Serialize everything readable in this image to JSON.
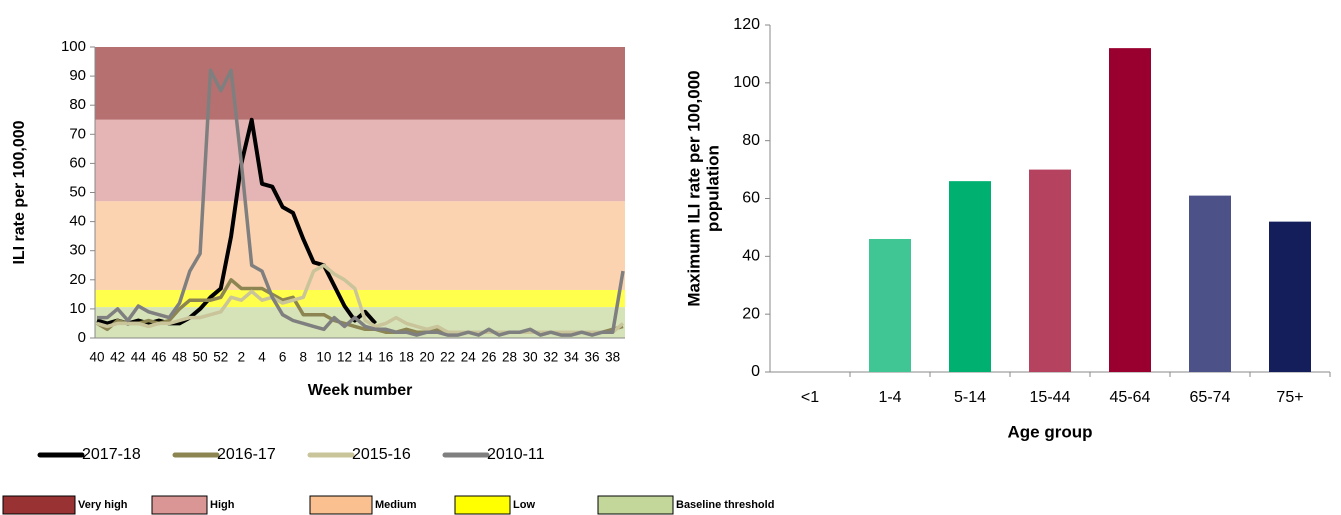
{
  "chart_data": [
    {
      "type": "line",
      "xlabel": "Week number",
      "ylabel": "ILI rate per 100,000",
      "categories": [
        "40",
        null,
        "42",
        null,
        "44",
        null,
        "46",
        null,
        "48",
        null,
        "50",
        null,
        "52",
        null,
        "2",
        null,
        "4",
        null,
        "6",
        null,
        "8",
        null,
        "10",
        null,
        "12",
        null,
        "14",
        null,
        "16",
        null,
        "18",
        null,
        "20",
        null,
        "22",
        null,
        "24",
        null,
        "26",
        null,
        "28",
        null,
        "30",
        null,
        "32",
        null,
        "34",
        null,
        "36",
        null,
        "38",
        null
      ],
      "ylim": [
        0,
        100
      ],
      "yticks": [
        0,
        10,
        20,
        30,
        40,
        50,
        60,
        70,
        80,
        90,
        100
      ],
      "bands": [
        {
          "name": "Very high",
          "color": "#993333",
          "from": 75,
          "to": 100
        },
        {
          "name": "High",
          "color": "#d99694",
          "from": 47,
          "to": 75
        },
        {
          "name": "Medium",
          "color": "#fac090",
          "from": 16.5,
          "to": 47
        },
        {
          "name": "Low",
          "color": "#ffff00",
          "from": 10.6,
          "to": 16.5
        },
        {
          "name": "Baseline threshold",
          "color": "#c4d79b",
          "from": 0,
          "to": 10.6
        }
      ],
      "series": [
        {
          "name": "2017-18",
          "color": "#000000",
          "values": [
            6,
            5,
            6,
            5,
            6,
            5,
            6,
            5,
            5,
            7,
            10,
            14,
            17,
            35,
            60,
            75,
            53,
            52,
            45,
            43,
            34,
            26,
            25,
            18,
            11,
            6,
            9,
            5,
            null,
            null,
            null,
            null,
            null,
            null,
            null,
            null,
            null,
            null,
            null,
            null,
            null,
            null,
            null,
            null,
            null,
            null,
            null,
            null,
            null,
            null,
            null,
            null
          ]
        },
        {
          "name": "2016-17",
          "color": "#8c8552",
          "values": [
            5,
            3,
            6,
            5,
            5,
            6,
            5,
            6,
            10,
            13,
            13,
            13,
            14,
            20,
            17,
            17,
            17,
            15,
            13,
            14,
            8,
            8,
            8,
            6,
            5,
            4,
            3,
            3,
            2,
            2,
            3,
            2,
            2,
            3,
            2,
            2,
            2,
            2,
            2,
            2,
            2,
            2,
            2,
            2,
            2,
            2,
            2,
            2,
            2,
            2,
            3,
            4
          ]
        },
        {
          "name": "2015-16",
          "color": "#c9c49a",
          "values": [
            5,
            4,
            5,
            5,
            5,
            4,
            5,
            5,
            6,
            7,
            7,
            8,
            9,
            14,
            13,
            16,
            13,
            14,
            12,
            13,
            14,
            23,
            25,
            22,
            20,
            17,
            6,
            4,
            5,
            7,
            5,
            4,
            3,
            4,
            2,
            2,
            2,
            2,
            2,
            2,
            2,
            2,
            2,
            2,
            2,
            2,
            2,
            2,
            2,
            2,
            2,
            5
          ]
        },
        {
          "name": "2010-11",
          "color": "#7f7f7f",
          "values": [
            7,
            7,
            10,
            6,
            11,
            9,
            8,
            7,
            12,
            23,
            29,
            92,
            85,
            92,
            60,
            25,
            23,
            14,
            8,
            6,
            5,
            4,
            3,
            7,
            4,
            7,
            4,
            3,
            3,
            2,
            2,
            1,
            2,
            2,
            1,
            1,
            2,
            1,
            3,
            1,
            2,
            2,
            3,
            1,
            2,
            1,
            1,
            2,
            1,
            2,
            2,
            23
          ]
        }
      ]
    },
    {
      "type": "bar",
      "xlabel": "Age group",
      "ylabel": [
        "Maximum ILI rate per 100,000",
        "population"
      ],
      "categories": [
        "<1",
        "1-4",
        "5-14",
        "15-44",
        "45-64",
        "65-74",
        "75+"
      ],
      "values": [
        null,
        46,
        66,
        70,
        112,
        61,
        52
      ],
      "colors": [
        "#40c594",
        "#40c594",
        "#00b070",
        "#b5425f",
        "#99002f",
        "#4c5288",
        "#141e5a"
      ],
      "ylim": [
        0,
        120
      ],
      "yticks": [
        0,
        20,
        40,
        60,
        80,
        100,
        120
      ]
    }
  ]
}
